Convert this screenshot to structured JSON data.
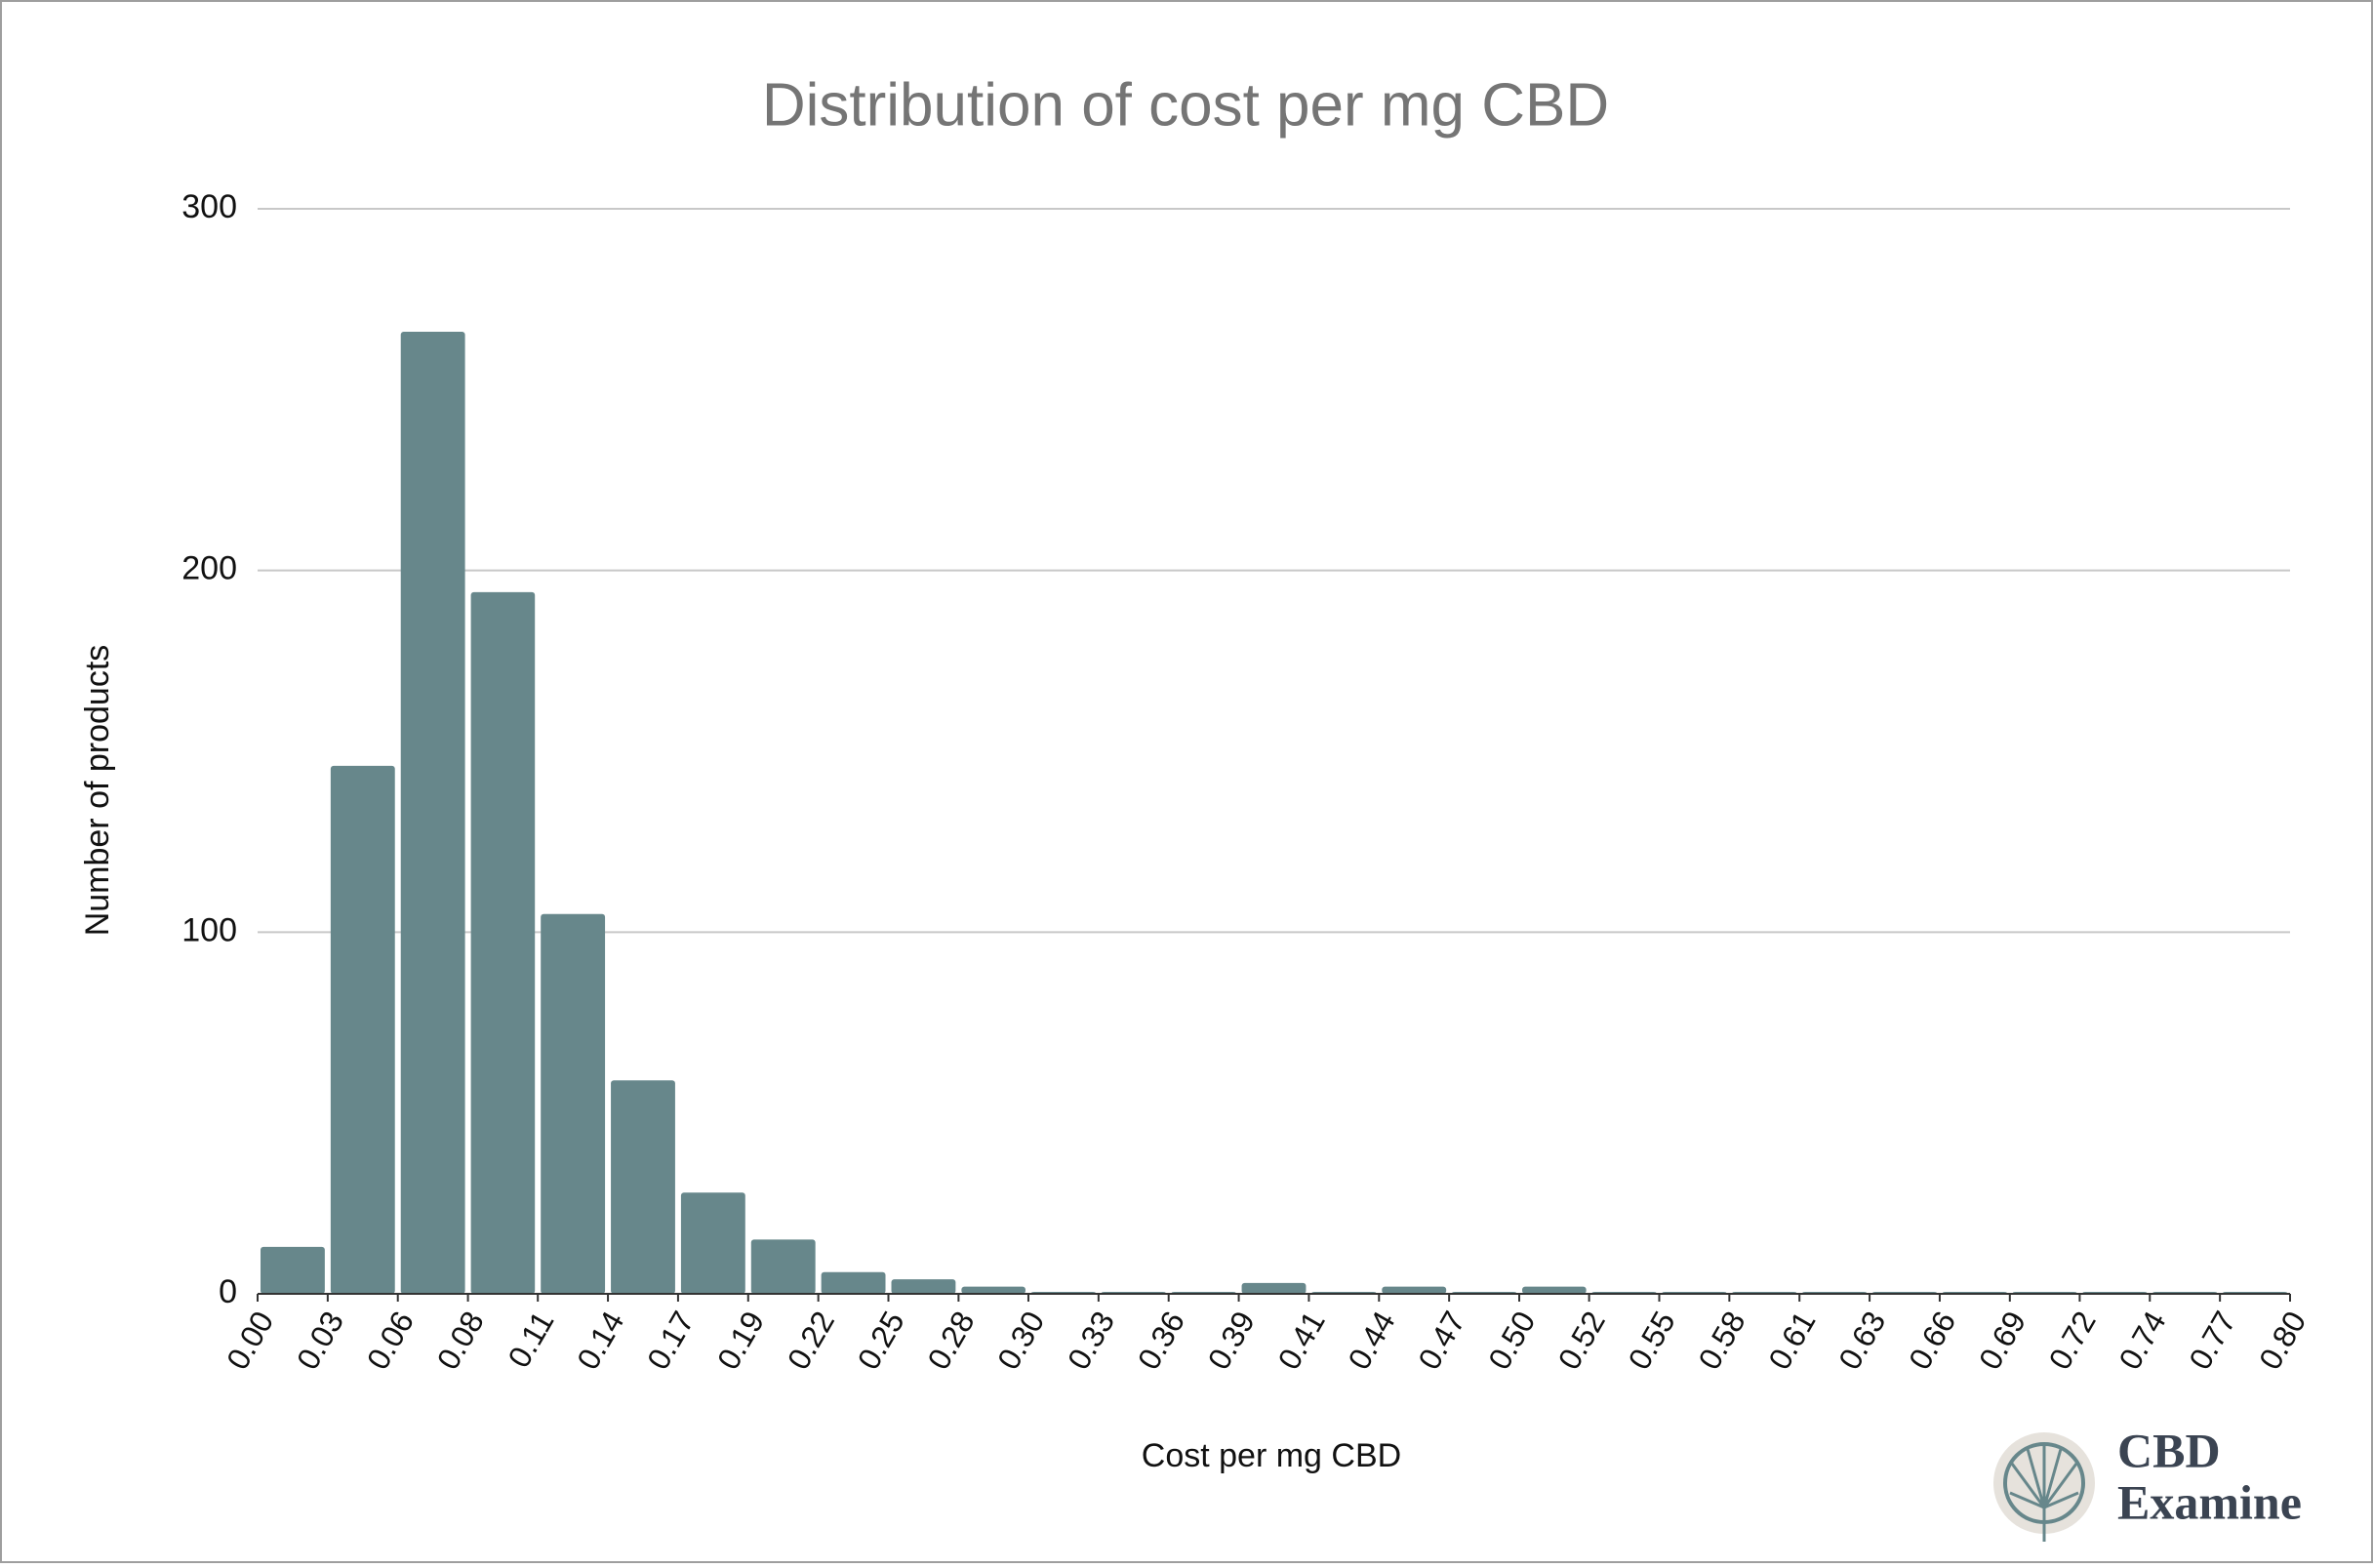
{
  "chart_data": {
    "type": "histogram",
    "title": "Distribution of cost per mg CBD",
    "x_label": "Cost per mg CBD",
    "y_label": "Number of products",
    "bins": [
      0,
      0.0276,
      0.0552,
      0.0828,
      0.1103,
      0.1379,
      0.1655,
      0.1931,
      0.2207,
      0.2483,
      0.2759,
      0.3034,
      0.331,
      0.3586,
      0.3862,
      0.4138,
      0.4414,
      0.469,
      0.4966,
      0.5241,
      0.5517,
      0.5793,
      0.6069,
      0.6345,
      0.6621,
      0.6897,
      0.7172,
      0.7448,
      0.7724,
      0.8
    ],
    "values": [
      13,
      146,
      266,
      194,
      105,
      59,
      28,
      15,
      6,
      4,
      2,
      0,
      0,
      0,
      3,
      0,
      2,
      0,
      2,
      0,
      0,
      0,
      0,
      0,
      0,
      0,
      0,
      0,
      0
    ],
    "color": "#67878b",
    "xlim": [
      0,
      0.8
    ],
    "xticks": [
      {
        "value": 0,
        "label": "0.00"
      },
      {
        "value": 0.0276,
        "label": "0.03"
      },
      {
        "value": 0.0552,
        "label": "0.06"
      },
      {
        "value": 0.0828,
        "label": "0.08"
      },
      {
        "value": 0.1103,
        "label": "0.11"
      },
      {
        "value": 0.1379,
        "label": "0.14"
      },
      {
        "value": 0.1655,
        "label": "0.17"
      },
      {
        "value": 0.1931,
        "label": "0.19"
      },
      {
        "value": 0.2207,
        "label": "0.22"
      },
      {
        "value": 0.2483,
        "label": "0.25"
      },
      {
        "value": 0.2759,
        "label": "0.28"
      },
      {
        "value": 0.3034,
        "label": "0.30"
      },
      {
        "value": 0.331,
        "label": "0.33"
      },
      {
        "value": 0.3586,
        "label": "0.36"
      },
      {
        "value": 0.3862,
        "label": "0.39"
      },
      {
        "value": 0.4138,
        "label": "0.41"
      },
      {
        "value": 0.4414,
        "label": "0.44"
      },
      {
        "value": 0.469,
        "label": "0.47"
      },
      {
        "value": 0.4966,
        "label": "0.50"
      },
      {
        "value": 0.5241,
        "label": "0.52"
      },
      {
        "value": 0.5517,
        "label": "0.55"
      },
      {
        "value": 0.5793,
        "label": "0.58"
      },
      {
        "value": 0.6069,
        "label": "0.61"
      },
      {
        "value": 0.6345,
        "label": "0.63"
      },
      {
        "value": 0.6621,
        "label": "0.66"
      },
      {
        "value": 0.6897,
        "label": "0.69"
      },
      {
        "value": 0.7172,
        "label": "0.72"
      },
      {
        "value": 0.7448,
        "label": "0.74"
      },
      {
        "value": 0.7724,
        "label": "0.77"
      },
      {
        "value": 0.8,
        "label": "0.80"
      }
    ],
    "ylim": [
      0,
      300
    ],
    "yticks": [
      0,
      100,
      200,
      300
    ],
    "grid": true
  },
  "logo": {
    "line1": "CBD",
    "line2": "Examine"
  }
}
